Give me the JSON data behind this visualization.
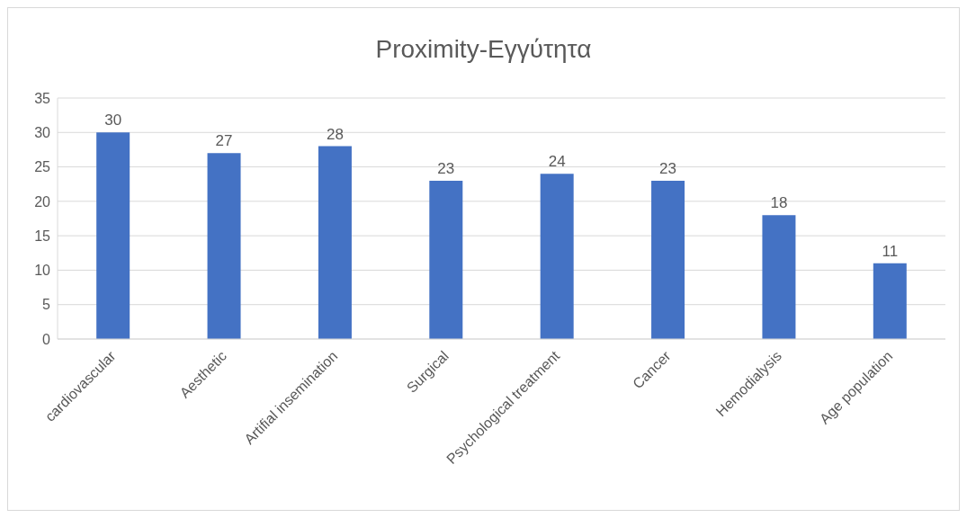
{
  "chart_data": {
    "type": "bar",
    "title": "Proximity-Εγγύτητα",
    "categories": [
      "cardiovascular",
      "Aesthetic",
      "Artifial insemination",
      "Surgical",
      "Psychological treatment",
      "Cancer",
      "Hemodialysis",
      "Age population"
    ],
    "values": [
      30,
      27,
      28,
      23,
      24,
      23,
      18,
      11
    ],
    "color": "#4472c4",
    "ylim": [
      0,
      35
    ],
    "yticks": [
      0,
      5,
      10,
      15,
      20,
      25,
      30,
      35
    ],
    "grid": "y",
    "data_labels": true
  }
}
